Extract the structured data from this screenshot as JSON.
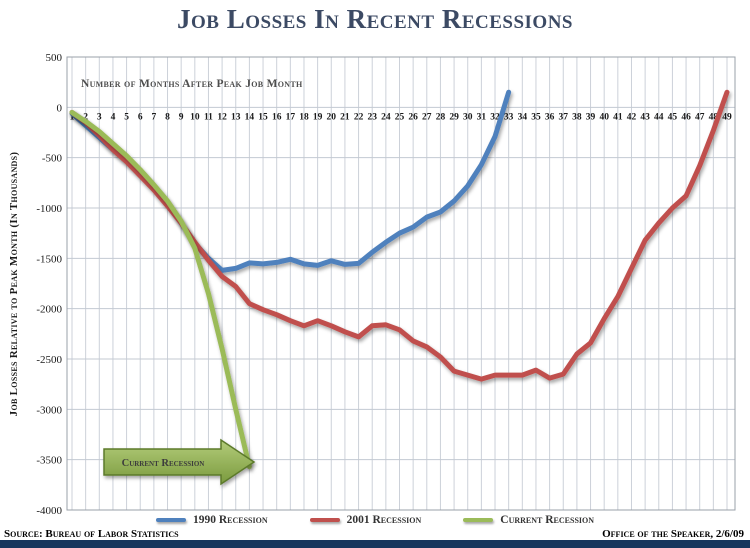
{
  "footer": {
    "source": "Source: Bureau of Labor Statistics",
    "credit": "Office of the Speaker, 2/6/09"
  },
  "colors": {
    "accent_bar": "#17365D",
    "title_text": "#3C4A64"
  },
  "chart_data": {
    "type": "line",
    "title": "Job Losses In Recent Recessions",
    "inner_axis_label": "Number of Months After Peak Job Month",
    "xlabel": "Number of Months After Peak Job Month",
    "ylabel": "Job Losses Relative to Peak Month (In Thousands)",
    "xlim": [
      1,
      49
    ],
    "ylim": [
      -4000,
      500
    ],
    "grid": true,
    "legend_position": "bottom",
    "x_ticks": [
      1,
      2,
      3,
      4,
      5,
      6,
      7,
      8,
      9,
      10,
      11,
      12,
      13,
      14,
      15,
      16,
      17,
      18,
      19,
      20,
      21,
      22,
      23,
      24,
      25,
      26,
      27,
      28,
      29,
      30,
      31,
      32,
      33,
      34,
      35,
      36,
      37,
      38,
      39,
      40,
      41,
      42,
      43,
      44,
      45,
      46,
      47,
      48,
      49
    ],
    "y_ticks": [
      500,
      0,
      -500,
      -1000,
      -1500,
      -2000,
      -2500,
      -3000,
      -3500,
      -4000
    ],
    "annotation": {
      "label": "Current Recession",
      "points_to": "end of current recession line at month 14, about -3570"
    },
    "series": [
      {
        "name": "1990 Recession",
        "color": "#4F81BD",
        "x_start": 1,
        "values": [
          -60,
          -180,
          -300,
          -420,
          -530,
          -650,
          -790,
          -950,
          -1150,
          -1350,
          -1500,
          -1620,
          -1600,
          -1545,
          -1555,
          -1540,
          -1510,
          -1555,
          -1570,
          -1525,
          -1560,
          -1550,
          -1440,
          -1340,
          -1250,
          -1190,
          -1090,
          -1040,
          -930,
          -780,
          -570,
          -290,
          150
        ]
      },
      {
        "name": "2001 Recession",
        "color": "#C0504D",
        "x_start": 1,
        "values": [
          -50,
          -150,
          -280,
          -420,
          -540,
          -680,
          -820,
          -980,
          -1150,
          -1340,
          -1520,
          -1680,
          -1780,
          -1950,
          -2010,
          -2060,
          -2120,
          -2170,
          -2120,
          -2170,
          -2230,
          -2280,
          -2170,
          -2160,
          -2210,
          -2320,
          -2380,
          -2480,
          -2620,
          -2660,
          -2700,
          -2660,
          -2660,
          -2660,
          -2610,
          -2690,
          -2650,
          -2450,
          -2340,
          -2100,
          -1880,
          -1600,
          -1320,
          -1150,
          -1000,
          -880,
          -580,
          -230,
          150
        ]
      },
      {
        "name": "Current Recession",
        "color": "#9BBB59",
        "x_start": 1,
        "values": [
          -50,
          -140,
          -240,
          -360,
          -480,
          -620,
          -770,
          -930,
          -1130,
          -1400,
          -1850,
          -2400,
          -3000,
          -3570
        ]
      }
    ]
  }
}
